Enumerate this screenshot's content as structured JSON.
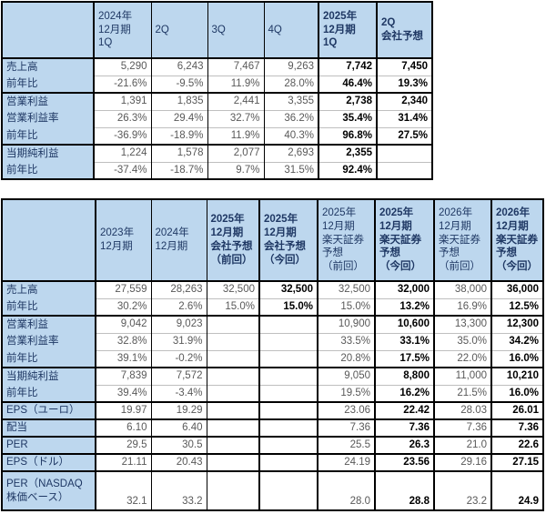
{
  "colors": {
    "header_bg": "#BDD7EE",
    "header_text": "#1F3864",
    "label_text": "#1F3864",
    "value_text": "#595959",
    "value_bold_text": "#000000",
    "border_dark": "#000000",
    "border_light": "#BFBFBF"
  },
  "quarterly_table": {
    "columns": [
      {
        "label": "",
        "bold": false
      },
      {
        "label": "2024年\n12月期\n1Q",
        "bold": false
      },
      {
        "label": "2Q",
        "bold": false
      },
      {
        "label": "3Q",
        "bold": false
      },
      {
        "label": "4Q",
        "bold": false
      },
      {
        "label": "2025年\n12月期\n1Q",
        "bold": true
      },
      {
        "label": "2Q\n会社予想",
        "bold": true
      }
    ],
    "bold_value_columns": [
      4,
      5
    ],
    "rows": [
      {
        "label": "売上高",
        "group_start": true,
        "values": [
          "5,290",
          "6,243",
          "7,467",
          "9,263",
          "7,742",
          "7,450"
        ]
      },
      {
        "label": "前年比",
        "group_start": false,
        "values": [
          "-21.6%",
          "-9.5%",
          "11.9%",
          "28.0%",
          "46.4%",
          "19.3%"
        ]
      },
      {
        "label": "営業利益",
        "group_start": true,
        "values": [
          "1,391",
          "1,835",
          "2,441",
          "3,355",
          "2,738",
          "2,340"
        ]
      },
      {
        "label": "営業利益率",
        "group_start": false,
        "values": [
          "26.3%",
          "29.4%",
          "32.7%",
          "36.2%",
          "35.4%",
          "31.4%"
        ]
      },
      {
        "label": "前年比",
        "group_start": false,
        "values": [
          "-36.9%",
          "-18.9%",
          "11.9%",
          "40.3%",
          "96.8%",
          "27.5%"
        ]
      },
      {
        "label": "当期純利益",
        "group_start": true,
        "values": [
          "1,224",
          "1,578",
          "2,077",
          "2,693",
          "2,355",
          ""
        ]
      },
      {
        "label": "前年比",
        "group_start": false,
        "values": [
          "-37.4%",
          "-18.7%",
          "9.7%",
          "31.5%",
          "92.4%",
          ""
        ]
      }
    ]
  },
  "annual_table": {
    "columns": [
      {
        "label": "",
        "bold": false
      },
      {
        "label": "2023年\n12月期",
        "bold": false
      },
      {
        "label": "2024年\n12月期",
        "bold": false
      },
      {
        "label": "2025年\n12月期\n会社予想\n（前回）",
        "bold": true
      },
      {
        "label": "2025年\n12月期\n会社予想\n（今回）",
        "bold": true
      },
      {
        "label": "2025年\n12月期\n楽天証券\n予想\n（前回）",
        "bold": false
      },
      {
        "label": "2025年\n12月期\n楽天証券\n予想\n（今回）",
        "bold": true
      },
      {
        "label": "2026年\n12月期\n楽天証券\n予想\n（前回）",
        "bold": false
      },
      {
        "label": "2026年\n12月期\n楽天証券\n予想\n（今回）",
        "bold": true
      }
    ],
    "bold_value_columns": [
      3,
      5,
      7
    ],
    "rows": [
      {
        "label": "売上高",
        "group_start": true,
        "values": [
          "27,559",
          "28,263",
          "32,500",
          "32,500",
          "32,500",
          "32,000",
          "38,000",
          "36,000"
        ]
      },
      {
        "label": "前年比",
        "group_start": false,
        "values": [
          "30.2%",
          "2.6%",
          "15.0%",
          "15.0%",
          "15.0%",
          "13.2%",
          "16.9%",
          "12.5%"
        ]
      },
      {
        "label": "営業利益",
        "group_start": true,
        "values": [
          "9,042",
          "9,023",
          "",
          "",
          "10,900",
          "10,600",
          "13,300",
          "12,300"
        ]
      },
      {
        "label": "営業利益率",
        "group_start": false,
        "values": [
          "32.8%",
          "31.9%",
          "",
          "",
          "33.5%",
          "33.1%",
          "35.0%",
          "34.2%"
        ]
      },
      {
        "label": "前年比",
        "group_start": false,
        "values": [
          "39.1%",
          "-0.2%",
          "",
          "",
          "20.8%",
          "17.5%",
          "22.0%",
          "16.0%"
        ]
      },
      {
        "label": "当期純利益",
        "group_start": true,
        "values": [
          "7,839",
          "7,572",
          "",
          "",
          "9,050",
          "8,800",
          "11,000",
          "10,210"
        ]
      },
      {
        "label": "前年比",
        "group_start": false,
        "values": [
          "39.4%",
          "-3.4%",
          "",
          "",
          "19.5%",
          "16.2%",
          "21.5%",
          "16.0%"
        ]
      },
      {
        "label": "EPS（ユーロ）",
        "group_start": true,
        "values": [
          "19.97",
          "19.29",
          "",
          "",
          "23.06",
          "22.42",
          "28.03",
          "26.01"
        ]
      },
      {
        "label": "配当",
        "group_start": true,
        "values": [
          "6.10",
          "6.40",
          "",
          "",
          "7.36",
          "7.36",
          "7.36",
          "7.36"
        ]
      },
      {
        "label": "PER",
        "group_start": true,
        "values": [
          "29.5",
          "30.5",
          "",
          "",
          "25.5",
          "26.3",
          "21.0",
          "22.6"
        ]
      },
      {
        "label": "EPS（ドル）",
        "group_start": true,
        "values": [
          "21.11",
          "20.43",
          "",
          "",
          "24.19",
          "23.56",
          "29.16",
          "27.15"
        ]
      },
      {
        "label": "PER（NASDAQ株価ベース）",
        "group_start": true,
        "tall": true,
        "values": [
          "32.1",
          "33.2",
          "",
          "",
          "28.0",
          "28.8",
          "23.2",
          "24.9"
        ]
      }
    ]
  }
}
